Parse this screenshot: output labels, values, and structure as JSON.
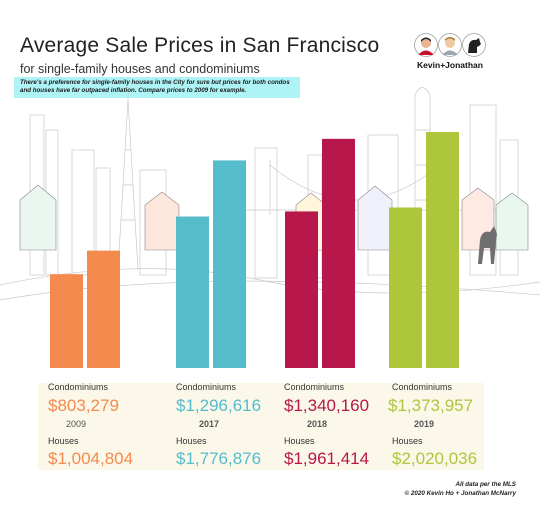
{
  "title": "Average Sale Prices in San Francisco",
  "subtitle": "for single-family houses and condominiums",
  "note": "There's a preference for single-family houses in the City for sure but prices for both condos and houses have far outpaced inflation. Compare prices to 2009 for example.",
  "brand": "Kevin+Jonathan",
  "footer": {
    "line1": "All data per the MLS",
    "line2": "© 2020 Kevin Ho + Jonathan McNarry"
  },
  "colors": {
    "2009": "#f58a4f",
    "2017": "#55bccb",
    "2018": "#b8174b",
    "2019": "#adc63c"
  },
  "chart_data": {
    "type": "bar",
    "categories": [
      "2009",
      "2017",
      "2018",
      "2019"
    ],
    "series": [
      {
        "name": "Condominiums",
        "values": [
          803279,
          1296616,
          1340160,
          1373957
        ]
      },
      {
        "name": "Houses",
        "values": [
          1004804,
          1776876,
          1961414,
          2020036
        ]
      }
    ],
    "labels": {
      "condo_label": "Condominiums",
      "house_label": "Houses",
      "condo_values": [
        "$803,279",
        "$1,296,616",
        "$1,340,160",
        "$1,373,957"
      ],
      "house_values": [
        "$1,004,804",
        "$1,776,876",
        "$1,961,414",
        "$2,020,036"
      ]
    },
    "grid": false,
    "legend": "none"
  }
}
